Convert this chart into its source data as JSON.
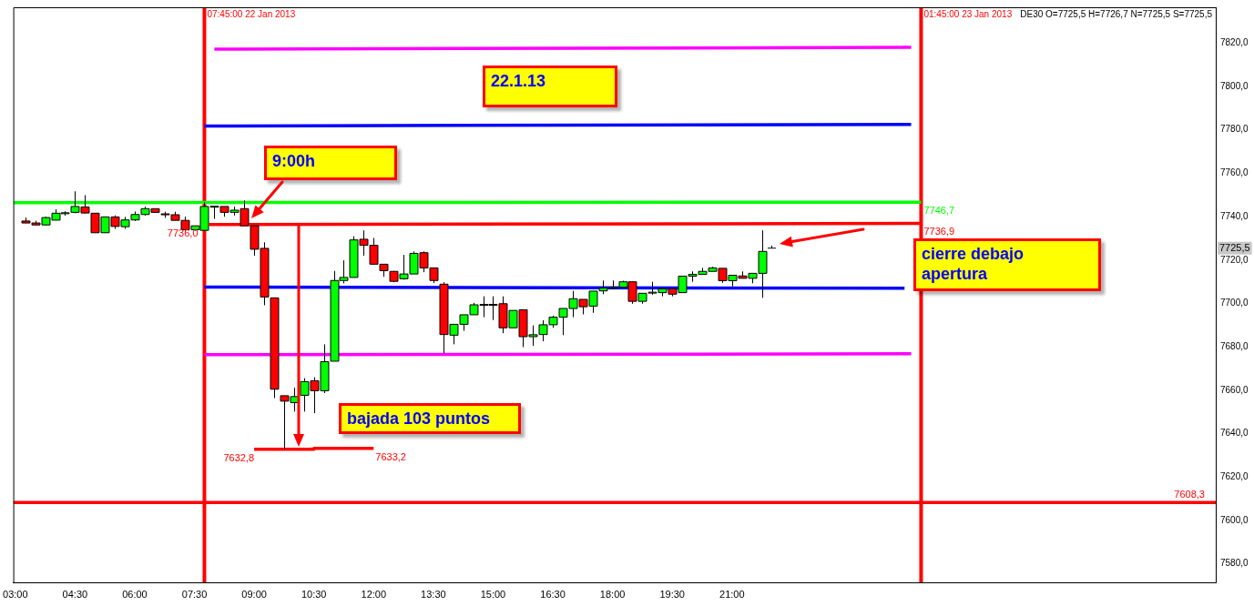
{
  "chart_data": {
    "type": "candlestick",
    "x": [
      "2013-01-22T03:15",
      "2013-01-22T03:30",
      "2013-01-22T03:45",
      "2013-01-22T04:00",
      "2013-01-22T04:15",
      "2013-01-22T04:30",
      "2013-01-22T04:45",
      "2013-01-22T05:00",
      "2013-01-22T05:15",
      "2013-01-22T05:30",
      "2013-01-22T05:45",
      "2013-01-22T06:00",
      "2013-01-22T06:15",
      "2013-01-22T06:30",
      "2013-01-22T06:45",
      "2013-01-22T07:00",
      "2013-01-22T07:15",
      "2013-01-22T07:30",
      "2013-01-22T07:45",
      "2013-01-22T08:00",
      "2013-01-22T08:15",
      "2013-01-22T08:30",
      "2013-01-22T08:45",
      "2013-01-22T09:00",
      "2013-01-22T09:15",
      "2013-01-22T09:30",
      "2013-01-22T09:45",
      "2013-01-22T10:00",
      "2013-01-22T10:15",
      "2013-01-22T10:30",
      "2013-01-22T10:45",
      "2013-01-22T11:00",
      "2013-01-22T11:15",
      "2013-01-22T11:30",
      "2013-01-22T11:45",
      "2013-01-22T12:00",
      "2013-01-22T12:15",
      "2013-01-22T12:30",
      "2013-01-22T12:45",
      "2013-01-22T13:00",
      "2013-01-22T13:15",
      "2013-01-22T13:30",
      "2013-01-22T13:45",
      "2013-01-22T14:00",
      "2013-01-22T14:15",
      "2013-01-22T14:30",
      "2013-01-22T14:45",
      "2013-01-22T15:00",
      "2013-01-22T15:15",
      "2013-01-22T15:30",
      "2013-01-22T15:45",
      "2013-01-22T16:00",
      "2013-01-22T16:15",
      "2013-01-22T16:30",
      "2013-01-22T16:45",
      "2013-01-22T17:00",
      "2013-01-22T17:15",
      "2013-01-22T17:30",
      "2013-01-22T17:45",
      "2013-01-22T18:00",
      "2013-01-22T18:15",
      "2013-01-22T18:30",
      "2013-01-22T18:45",
      "2013-01-22T19:00",
      "2013-01-22T19:15",
      "2013-01-22T19:30",
      "2013-01-22T19:45",
      "2013-01-22T20:00",
      "2013-01-22T20:15",
      "2013-01-22T20:30",
      "2013-01-22T20:45",
      "2013-01-22T21:00",
      "2013-01-22T21:15",
      "2013-01-22T21:30",
      "2013-01-22T21:45",
      "2013-01-22T22:00"
    ],
    "ohlc": [
      [
        7738,
        7739.6,
        7737,
        7737.1
      ],
      [
        7737.1,
        7738.1,
        7736,
        7736.2
      ],
      [
        7736.2,
        7740,
        7736,
        7739.6
      ],
      [
        7738.4,
        7743.4,
        7738.4,
        7741.6
      ],
      [
        7741.5,
        7742.5,
        7740.5,
        7741.8
      ],
      [
        7742,
        7751.7,
        7741.6,
        7744.7
      ],
      [
        7744.5,
        7749.9,
        7741.5,
        7741.7
      ],
      [
        7741.6,
        7741.6,
        7732.6,
        7732.6
      ],
      [
        7732.6,
        7739.9,
        7732.6,
        7739.9
      ],
      [
        7739.9,
        7740.6,
        7734.4,
        7735.5
      ],
      [
        7735.4,
        7739.9,
        7734.4,
        7738.5
      ],
      [
        7738.5,
        7742.4,
        7738,
        7741
      ],
      [
        7741,
        7744.6,
        7740.5,
        7743.7
      ],
      [
        7743.7,
        7743.7,
        7742,
        7742
      ],
      [
        7741.3,
        7742.3,
        7739.5,
        7741
      ],
      [
        7740.9,
        7742.3,
        7738.3,
        7738.3
      ],
      [
        7738.3,
        7740,
        7733.5,
        7734
      ],
      [
        7734,
        7735.8,
        7733.5,
        7735.8
      ],
      [
        7733.7,
        7746.7,
        7733.5,
        7744.7
      ],
      [
        7744.6,
        7744.8,
        7739,
        7744.8
      ],
      [
        7744.7,
        7744.7,
        7740,
        7742
      ],
      [
        7742,
        7744.6,
        7740.5,
        7743
      ],
      [
        7743.7,
        7747.5,
        7735.8,
        7735.8
      ],
      [
        7735.8,
        7735.8,
        7722,
        7725
      ],
      [
        7725.4,
        7728.2,
        7699.2,
        7703
      ],
      [
        7702.6,
        7702.6,
        7656.4,
        7660.5
      ],
      [
        7657.5,
        7657.5,
        7632.8,
        7655
      ],
      [
        7654.3,
        7661.2,
        7650.2,
        7657.1
      ],
      [
        7657.7,
        7665.6,
        7650.2,
        7664
      ],
      [
        7664.4,
        7666,
        7649.5,
        7659.8
      ],
      [
        7659.8,
        7681.2,
        7658.7,
        7673.2
      ],
      [
        7673.4,
        7715,
        7673.4,
        7710.6
      ],
      [
        7710.6,
        7719.9,
        7709.3,
        7712
      ],
      [
        7712,
        7731,
        7712,
        7729.3
      ],
      [
        7729.6,
        7733.7,
        7722,
        7726.8
      ],
      [
        7726.8,
        7730.2,
        7718.1,
        7718.1
      ],
      [
        7718.1,
        7718.1,
        7712.3,
        7715.1
      ],
      [
        7714.8,
        7715,
        7709.8,
        7710.2
      ],
      [
        7711.4,
        7722.4,
        7711,
        7713.6
      ],
      [
        7713.6,
        7724,
        7713.6,
        7723.1
      ],
      [
        7723.4,
        7724,
        7714.4,
        7716.4
      ],
      [
        7716.4,
        7716.4,
        7709.4,
        7710.6
      ],
      [
        7708.9,
        7709.8,
        7677.1,
        7685.7
      ],
      [
        7685.4,
        7690.4,
        7681.2,
        7690.4
      ],
      [
        7690.4,
        7694.8,
        7687.4,
        7694.8
      ],
      [
        7694.8,
        7700.3,
        7694.8,
        7699.4
      ],
      [
        7699.4,
        7703.3,
        7693.7,
        7699.6
      ],
      [
        7699.6,
        7703.3,
        7692.4,
        7699.3
      ],
      [
        7699.9,
        7703.3,
        7686.3,
        7688.8
      ],
      [
        7688.8,
        7696.8,
        7688.8,
        7696.8
      ],
      [
        7697.1,
        7697.1,
        7679.9,
        7684.7
      ],
      [
        7684.7,
        7689.9,
        7680.5,
        7685.6
      ],
      [
        7685.7,
        7692.3,
        7682.6,
        7690.2
      ],
      [
        7690.2,
        7694.4,
        7688.8,
        7693.7
      ],
      [
        7693.7,
        7697.7,
        7685.4,
        7697.7
      ],
      [
        7697.7,
        7705.8,
        7693.7,
        7702.2
      ],
      [
        7701.9,
        7701.9,
        7695,
        7698.5
      ],
      [
        7698.8,
        7705.7,
        7695.7,
        7705.7
      ],
      [
        7705.8,
        7710.6,
        7704.3,
        7707.1
      ],
      [
        7707.2,
        7710.6,
        7706.5,
        7707.4
      ],
      [
        7707.5,
        7710.5,
        7707.5,
        7710
      ],
      [
        7710,
        7710,
        7699.9,
        7701
      ],
      [
        7701,
        7704.7,
        7699.9,
        7704.7
      ],
      [
        7705,
        7710,
        7704,
        7705.2
      ],
      [
        7705,
        7706.8,
        7703.3,
        7706.8
      ],
      [
        7706.8,
        7706.8,
        7703.3,
        7704.3
      ],
      [
        7705,
        7712.6,
        7705,
        7712.6
      ],
      [
        7712.6,
        7714.8,
        7710,
        7713.4
      ],
      [
        7713.4,
        7716.4,
        7713.4,
        7714.8
      ],
      [
        7714.8,
        7716.9,
        7714.8,
        7716.4
      ],
      [
        7716.2,
        7716.2,
        7709.5,
        7710.5
      ],
      [
        7710.5,
        7713,
        7707.9,
        7713
      ],
      [
        7712.7,
        7714.8,
        7711.6,
        7711.6
      ],
      [
        7711.6,
        7713.9,
        7709.3,
        7713.9
      ],
      [
        7713.9,
        7733.7,
        7702.6,
        7724
      ],
      [
        7725.5,
        7726.7,
        7725.5,
        7725.5
      ]
    ],
    "colors": [
      "#ff0000",
      "#ff0000",
      "#00ff00",
      "#00ff00",
      "#00ff00",
      "#00ff00",
      "#ff0000",
      "#ff0000",
      "#00ff00",
      "#ff0000",
      "#00ff00",
      "#00ff00",
      "#00ff00",
      "#ff0000",
      "#ff0000",
      "#ff0000",
      "#ff0000",
      "#00ff00",
      "#00ff00",
      "#00ff00",
      "#ff0000",
      "#00ff00",
      "#ff0000",
      "#ff0000",
      "#ff0000",
      "#ff0000",
      "#ff0000",
      "#00ff00",
      "#00ff00",
      "#ff0000",
      "#00ff00",
      "#00ff00",
      "#00ff00",
      "#00ff00",
      "#ff0000",
      "#ff0000",
      "#ff0000",
      "#ff0000",
      "#00ff00",
      "#00ff00",
      "#ff0000",
      "#ff0000",
      "#ff0000",
      "#00ff00",
      "#00ff00",
      "#00ff00",
      "#00ff00",
      "#ff0000",
      "#ff0000",
      "#00ff00",
      "#ff0000",
      "#00ff00",
      "#00ff00",
      "#00ff00",
      "#00ff00",
      "#00ff00",
      "#ff0000",
      "#00ff00",
      "#00ff00",
      "#00ff00",
      "#00ff00",
      "#ff0000",
      "#00ff00",
      "#00ff00",
      "#00ff00",
      "#ff0000",
      "#00ff00",
      "#00ff00",
      "#00ff00",
      "#00ff00",
      "#ff0000",
      "#00ff00",
      "#ff0000",
      "#00ff00",
      "#00ff00",
      "#000000"
    ],
    "series": [
      {
        "type": "line",
        "color": "#ff00ff",
        "x": [
          "2013-01-22T08:00",
          "2013-01-23T01:30"
        ],
        "values": [
          7817.2,
          7818
        ]
      },
      {
        "type": "line",
        "color": "#0000ff",
        "x": [
          "2013-01-22T07:45",
          "2013-01-23T01:30"
        ],
        "values": [
          7781.8,
          7782.5
        ]
      },
      {
        "type": "line",
        "name": "7746,7",
        "color": "#00ff00",
        "x": [
          "2013-01-22T02:57",
          "2013-01-23T01:45"
        ],
        "values": [
          7746.5,
          7746.7
        ]
      },
      {
        "type": "line",
        "name": "7736,9",
        "color": "#ff0000",
        "x": [
          "2013-01-22T07:52",
          "2013-01-23T01:45"
        ],
        "values": [
          7736.4,
          7736.9
        ]
      },
      {
        "type": "line",
        "color": "#0000ff",
        "x": [
          "2013-01-22T07:45",
          "2013-01-23T01:20"
        ],
        "values": [
          7707.6,
          7707.0
        ]
      },
      {
        "type": "line",
        "color": "#ff00ff",
        "x": [
          "2013-01-22T07:45",
          "2013-01-23T01:30"
        ],
        "values": [
          7676.4,
          7676.8
        ]
      },
      {
        "type": "line",
        "color": "#ff0000",
        "x": [
          "2013-01-22T09:00",
          "2013-01-22T10:30",
          "2013-01-22T10:30",
          "2013-01-22T12:00"
        ],
        "values": [
          7632.8,
          7632.8,
          7633.2,
          7633.2
        ]
      },
      {
        "type": "line",
        "name": "7608,3",
        "color": "#ff0000",
        "x": [
          "2013-01-22T02:57",
          "2013-01-23T09:09"
        ],
        "values": [
          7608.3,
          7608.3
        ]
      }
    ],
    "ref_lines": [
      {
        "axis": "x",
        "value": "2013-01-22T07:45",
        "label": "07:45:00 22 Jan 2013",
        "color": "#ff0000"
      },
      {
        "axis": "x",
        "value": "2013-01-23T01:45",
        "label": "01:45:00 23 Jan 2013",
        "color": "#ff0000"
      }
    ],
    "annotations": [
      "22.1.13",
      "9:00h",
      "bajada 103 puntos",
      "cierre debajo apertura",
      {
        "text": "7736,0",
        "x": "2013-01-22T07:30",
        "y": 7736
      },
      "DE30 O=7725,5 H=7726,7 N=7725,5 S=7725,5",
      "7725,5",
      {
        "text": "7632,8",
        "x": "2013-01-22T09:00",
        "y": 7632.8
      },
      {
        "text": "7633,2",
        "x": "2013-01-22T12:00",
        "y": 7633.2
      }
    ],
    "xlim": [
      "2013-01-22T02:57",
      "2013-01-23T09:09"
    ],
    "xticks": [
      {
        "value": "2013-01-22T03:00",
        "label": "03:00"
      },
      {
        "value": "2013-01-22T04:30",
        "label": "04:30"
      },
      {
        "value": "2013-01-22T06:00",
        "label": "06:00"
      },
      {
        "value": "2013-01-22T07:30",
        "label": "07:30"
      },
      {
        "value": "2013-01-22T09:00",
        "label": "09:00"
      },
      {
        "value": "2013-01-22T10:30",
        "label": "10:30"
      },
      {
        "value": "2013-01-22T12:00",
        "label": "12:00"
      },
      {
        "value": "2013-01-22T13:30",
        "label": "13:30"
      },
      {
        "value": "2013-01-22T15:00",
        "label": "15:00"
      },
      {
        "value": "2013-01-22T16:30",
        "label": "16:30"
      },
      {
        "value": "2013-01-22T18:00",
        "label": "18:00"
      },
      {
        "value": "2013-01-22T19:30",
        "label": "19:30"
      },
      {
        "value": "2013-01-22T21:00",
        "label": "21:00"
      }
    ],
    "ylim": [
      7571.5,
      7836.5
    ],
    "yticks": [
      {
        "value": 7580,
        "label": "7580,0"
      },
      {
        "value": 7600,
        "label": "7600,0"
      },
      {
        "value": 7620,
        "label": "7620,0"
      },
      {
        "value": 7640,
        "label": "7640,0"
      },
      {
        "value": 7660,
        "label": "7660,0"
      },
      {
        "value": 7680,
        "label": "7680,0"
      },
      {
        "value": 7700,
        "label": "7700,0"
      },
      {
        "value": 7720,
        "label": "7720,0"
      },
      {
        "value": 7740,
        "label": "7740,0"
      },
      {
        "value": 7760,
        "label": "7760,0"
      },
      {
        "value": 7780,
        "label": "7780,0"
      },
      {
        "value": 7800,
        "label": "7800,0"
      },
      {
        "value": 7820,
        "label": "7820,0"
      }
    ],
    "grid": false,
    "legend": false
  }
}
